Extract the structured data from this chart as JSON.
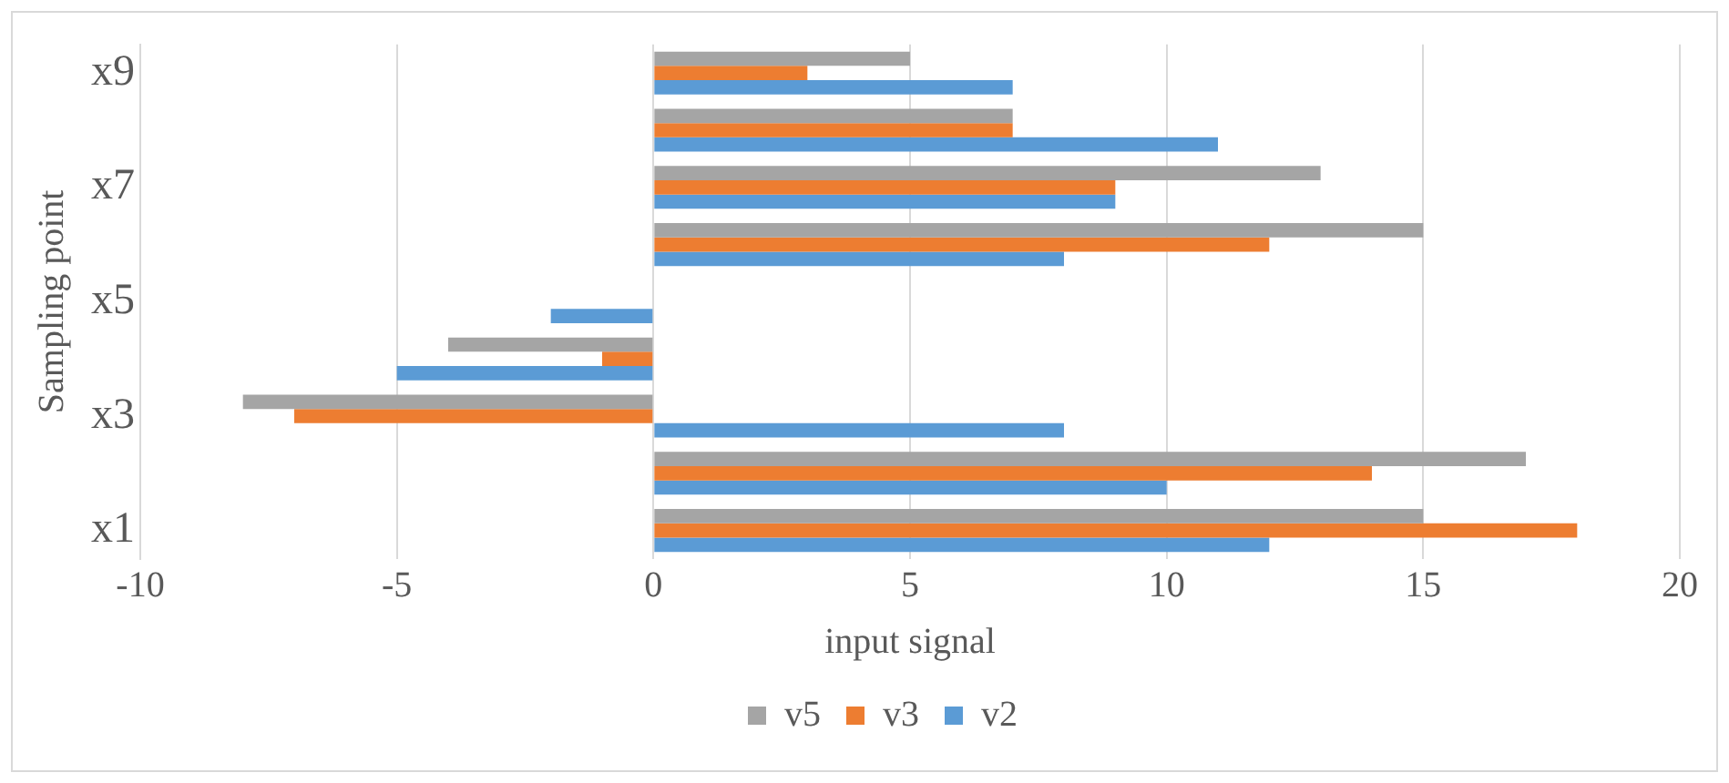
{
  "chart_data": {
    "type": "bar",
    "orientation": "horizontal",
    "xlabel": "input signal",
    "ylabel": "Sampling point",
    "categories": [
      "x9",
      null,
      "x7",
      null,
      "x5",
      null,
      "x3",
      null,
      "x1"
    ],
    "series": [
      {
        "name": "v5",
        "color": "#a5a5a5",
        "values": [
          5,
          7,
          13,
          15,
          0,
          -4,
          -8,
          17,
          15
        ]
      },
      {
        "name": "v3",
        "color": "#ed7d31",
        "values": [
          3,
          7,
          9,
          12,
          0,
          -1,
          -7,
          14,
          18
        ]
      },
      {
        "name": "v2",
        "color": "#5b9bd5",
        "values": [
          7,
          11,
          9,
          8,
          -2,
          -5,
          8,
          10,
          12
        ]
      }
    ],
    "xlim": [
      -10,
      20
    ],
    "xticks": [
      -10,
      -5,
      0,
      5,
      10,
      15,
      20
    ],
    "grid": "x",
    "legend": "bottom"
  }
}
